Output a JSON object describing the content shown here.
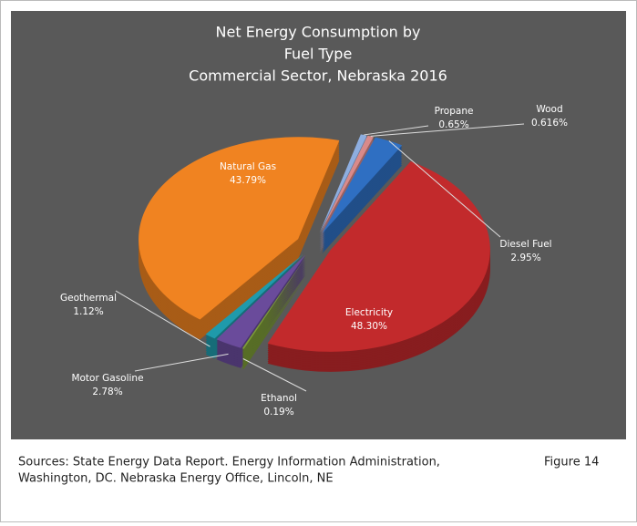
{
  "chart_data": {
    "type": "pie",
    "title": [
      "Net Energy Consumption by",
      "Fuel Type",
      "Commercial Sector, Nebraska 2016"
    ],
    "categories": [
      "Propane",
      "Wood",
      "Diesel Fuel",
      "Electricity",
      "Ethanol",
      "Motor Gasoline",
      "Geothermal",
      "Natural Gas"
    ],
    "values": [
      0.65,
      0.616,
      2.95,
      48.3,
      0.19,
      2.78,
      1.12,
      43.79
    ],
    "value_labels": [
      "0.65%",
      "0.616%",
      "2.95%",
      "48.30%",
      "0.19%",
      "2.78%",
      "1.12%",
      "43.79%"
    ],
    "colors": [
      "#8eaee0",
      "#d98a8a",
      "#2f6fc2",
      "#c22a2c",
      "#7c9b36",
      "#6a4b9b",
      "#1f9aab",
      "#f08321"
    ]
  },
  "source": [
    "Sources:  State Energy Data Report.  Energy Information Administration,",
    "Washington, DC.  Nebraska Energy Office, Lincoln, NE"
  ],
  "figure_label": "Figure 14"
}
